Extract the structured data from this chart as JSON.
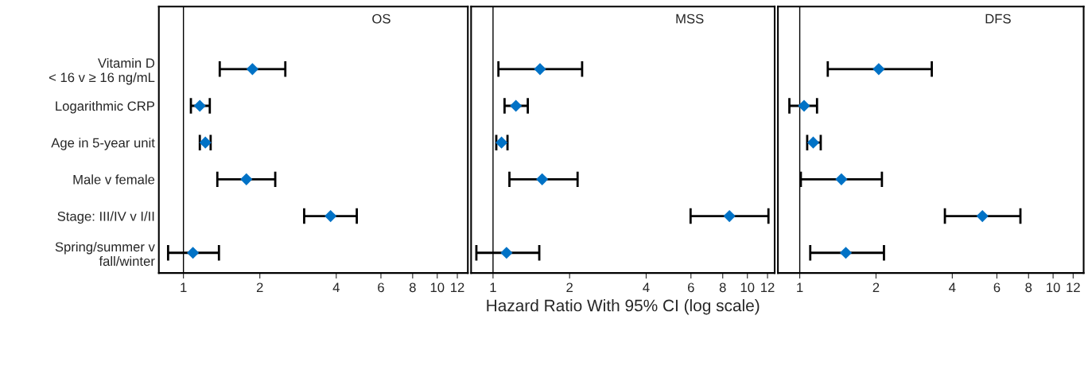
{
  "chart_data": [
    {
      "type": "scatter",
      "orientation": "horizontal",
      "title": "OS",
      "categories": [
        "Vitamin D\n< 16 v ≥ 16 ng/mL",
        "Logarithmic CRP",
        "Age in 5-year unit",
        "Male v female",
        "Stage: III/IV v I/II",
        "Spring/summer v\nfall/winter"
      ],
      "series": [
        {
          "color": "#0072c6",
          "values": [
            1.87,
            1.16,
            1.22,
            1.77,
            3.8,
            1.09
          ],
          "errors": [
            [
              1.39,
              2.52
            ],
            [
              1.07,
              1.27
            ],
            [
              1.16,
              1.28
            ],
            [
              1.36,
              2.3
            ],
            [
              2.99,
              4.82
            ],
            [
              0.87,
              1.38
            ]
          ]
        }
      ],
      "marker": "diamond",
      "log": "x",
      "xlim": [
        0.8,
        13.2
      ],
      "xticks": [
        1,
        2,
        4,
        6,
        8,
        10,
        12
      ],
      "ref_lines": [
        {
          "axis": "x",
          "value": 1
        }
      ],
      "grid": false,
      "legend": false
    },
    {
      "type": "scatter",
      "orientation": "horizontal",
      "title": "MSS",
      "xlabel": "Hazard Ratio With 95% CI (log scale)",
      "categories": [
        null,
        null,
        null,
        null,
        null,
        null
      ],
      "series": [
        {
          "color": "#0072c6",
          "values": [
            1.53,
            1.23,
            1.08,
            1.56,
            8.5,
            1.13
          ],
          "errors": [
            [
              1.05,
              2.24
            ],
            [
              1.11,
              1.37
            ],
            [
              1.03,
              1.14
            ],
            [
              1.16,
              2.15
            ],
            [
              5.98,
              12.1
            ],
            [
              0.86,
              1.52
            ]
          ]
        }
      ],
      "marker": "diamond",
      "log": "x",
      "xlim": [
        0.82,
        12.8
      ],
      "xticks": [
        1,
        2,
        4,
        6,
        8,
        10,
        12
      ],
      "ref_lines": [
        {
          "axis": "x",
          "value": 1
        }
      ],
      "grid": false,
      "legend": false,
      "tick_labels": "x"
    },
    {
      "type": "scatter",
      "orientation": "horizontal",
      "title": "DFS",
      "categories": [
        null,
        null,
        null,
        null,
        null,
        null
      ],
      "series": [
        {
          "color": "#0072c6",
          "values": [
            2.05,
            1.04,
            1.13,
            1.46,
            5.26,
            1.52
          ],
          "errors": [
            [
              1.29,
              3.32
            ],
            [
              0.91,
              1.17
            ],
            [
              1.07,
              1.21
            ],
            [
              1.01,
              2.11
            ],
            [
              3.74,
              7.43
            ],
            [
              1.1,
              2.15
            ]
          ]
        }
      ],
      "marker": "diamond",
      "log": "x",
      "xlim": [
        0.82,
        13.2
      ],
      "xticks": [
        1,
        2,
        4,
        6,
        8,
        10,
        12
      ],
      "ref_lines": [
        {
          "axis": "x",
          "value": 1
        }
      ],
      "grid": false,
      "legend": false,
      "tick_labels": "x"
    }
  ]
}
